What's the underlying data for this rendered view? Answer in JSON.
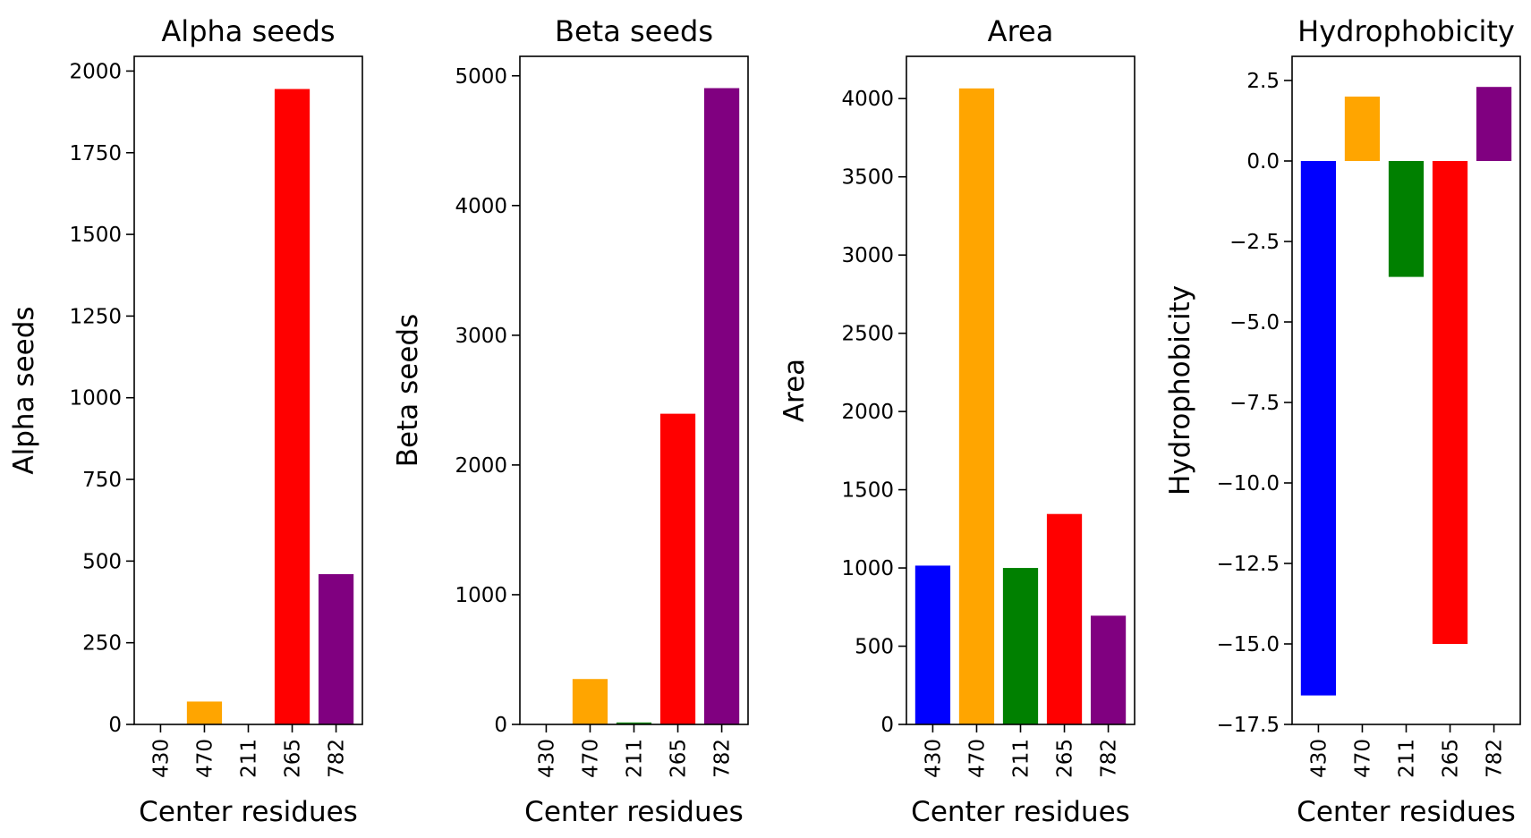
{
  "chart_data": [
    {
      "type": "bar",
      "title": "Alpha seeds",
      "xlabel": "Center residues",
      "ylabel": "Alpha seeds",
      "categories": [
        "430",
        "470",
        "211",
        "265",
        "782"
      ],
      "values": [
        0,
        70,
        0,
        1945,
        460
      ],
      "colors": [
        "#0000ff",
        "#ffa500",
        "#008000",
        "#ff0000",
        "#800080"
      ],
      "ylim": [
        0,
        2045
      ],
      "yticks": [
        0,
        250,
        500,
        750,
        1000,
        1250,
        1500,
        1750,
        2000
      ],
      "ytick_labels": [
        "0",
        "250",
        "500",
        "750",
        "1000",
        "1250",
        "1500",
        "1750",
        "2000"
      ],
      "grid": false
    },
    {
      "type": "bar",
      "title": "Beta seeds",
      "xlabel": "Center residues",
      "ylabel": "Beta seeds",
      "categories": [
        "430",
        "470",
        "211",
        "265",
        "782"
      ],
      "values": [
        0,
        350,
        15,
        2395,
        4905
      ],
      "colors": [
        "#0000ff",
        "#ffa500",
        "#008000",
        "#ff0000",
        "#800080"
      ],
      "ylim": [
        0,
        5150
      ],
      "yticks": [
        0,
        1000,
        2000,
        3000,
        4000,
        5000
      ],
      "ytick_labels": [
        "0",
        "1000",
        "2000",
        "3000",
        "4000",
        "5000"
      ],
      "grid": false
    },
    {
      "type": "bar",
      "title": "Area",
      "xlabel": "Center residues",
      "ylabel": "Area",
      "categories": [
        "430",
        "470",
        "211",
        "265",
        "782"
      ],
      "values": [
        1015,
        4065,
        1000,
        1345,
        695
      ],
      "colors": [
        "#0000ff",
        "#ffa500",
        "#008000",
        "#ff0000",
        "#800080"
      ],
      "ylim": [
        0,
        4270
      ],
      "yticks": [
        0,
        500,
        1000,
        1500,
        2000,
        2500,
        3000,
        3500,
        4000
      ],
      "ytick_labels": [
        "0",
        "500",
        "1000",
        "1500",
        "2000",
        "2500",
        "3000",
        "3500",
        "4000"
      ],
      "grid": false
    },
    {
      "type": "bar",
      "title": "Hydrophobicity",
      "xlabel": "Center residues",
      "ylabel": "Hydrophobicity",
      "categories": [
        "430",
        "470",
        "211",
        "265",
        "782"
      ],
      "values": [
        -16.6,
        2.0,
        -3.6,
        -15.0,
        2.3
      ],
      "colors": [
        "#0000ff",
        "#ffa500",
        "#008000",
        "#ff0000",
        "#800080"
      ],
      "ylim": [
        -17.5,
        3.25
      ],
      "yticks": [
        2.5,
        0.0,
        -2.5,
        -5.0,
        -7.5,
        -10.0,
        -12.5,
        -15.0,
        -17.5
      ],
      "ytick_labels": [
        "2.5",
        "0.0",
        "−2.5",
        "−5.0",
        "−7.5",
        "−10.0",
        "−12.5",
        "−15.0",
        "−17.5"
      ],
      "grid": false
    }
  ]
}
